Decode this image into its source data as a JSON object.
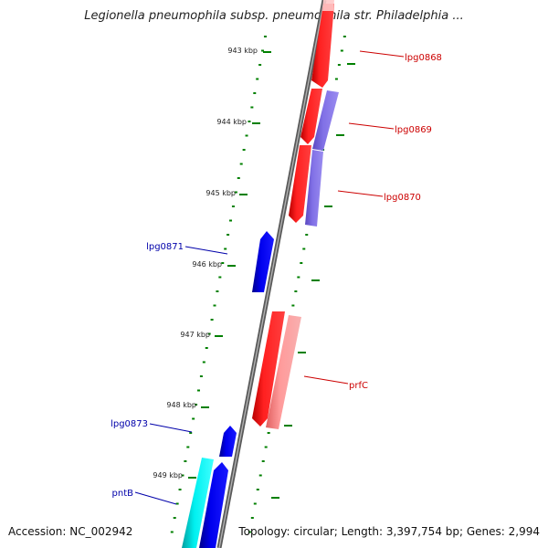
{
  "title": "Legionella pneumophila subsp. pneumophila str. Philadelphia ...",
  "footer": {
    "accession": "Accession: NC_002942",
    "summary": "Topology: circular; Length: 3,397,754 bp; Genes: 2,994"
  },
  "ticks": [
    "943 kbp",
    "944 kbp",
    "945 kbp",
    "946 kbp",
    "947 kbp",
    "948 kbp",
    "949 kbp"
  ],
  "genes": [
    {
      "name": "lpg0868",
      "strand": "plus",
      "color": "#ff0000"
    },
    {
      "name": "lpg0869",
      "strand": "plus",
      "color": "#ff0000"
    },
    {
      "name": "lpg0870",
      "strand": "plus",
      "color": "#ff0000"
    },
    {
      "name": "lpg0871",
      "strand": "minus",
      "color": "#0000cc"
    },
    {
      "name": "prfC",
      "strand": "plus",
      "color": "#ff0000"
    },
    {
      "name": "lpg0873",
      "strand": "minus",
      "color": "#0000cc"
    },
    {
      "name": "pntB",
      "strand": "minus",
      "color": "#0000cc"
    }
  ],
  "colors": {
    "backbone": "#808080",
    "ticks": "#008000",
    "plus_label": "#cc0000",
    "minus_label": "#0000aa",
    "light_red": "#f08080",
    "purple": "#7766dd",
    "cyan": "#00e5e5"
  }
}
